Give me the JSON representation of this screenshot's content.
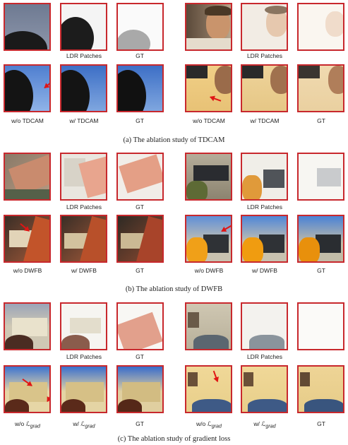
{
  "labels": {
    "ldr_patches": "LDR Patches",
    "gt": "GT",
    "wo_tdcam": "w/o TDCAM",
    "w_tdcam": "w/ TDCAM",
    "wo_dwfb": "w/o DWFB",
    "w_dwfb": "w/ DWFB",
    "wo_prefix": "w/o ",
    "w_prefix": "w/ ",
    "loss_symbol": "ℒ",
    "loss_subscript": "grad"
  },
  "captions": {
    "a": "(a) The ablation study of TDCAM",
    "b": "(b) The ablation study of DWFB",
    "c": "(c) The ablation study of gradient loss"
  },
  "colors": {
    "frame_border": "#c8282d",
    "arrow": "#e01515"
  }
}
